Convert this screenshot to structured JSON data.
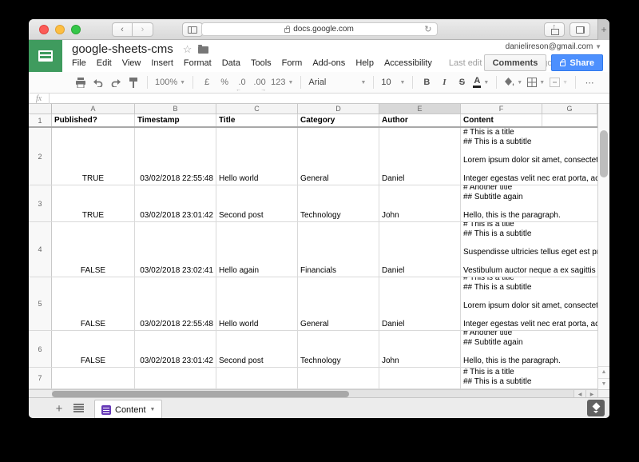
{
  "browser": {
    "url": "docs.google.com",
    "back_label": "‹",
    "forward_label": "›",
    "reload_label": "↻",
    "new_tab_label": "+"
  },
  "doc": {
    "title": "google-sheets-cms",
    "star": "☆",
    "menus": [
      "File",
      "Edit",
      "View",
      "Insert",
      "Format",
      "Data",
      "Tools",
      "Form",
      "Add-ons",
      "Help",
      "Accessibility"
    ],
    "last_edit": "Last edit was seconds ago",
    "account": "danielireson@gmail.com",
    "comments_label": "Comments",
    "share_label": "Share"
  },
  "toolbar": {
    "zoom": "100%",
    "currency": "£",
    "percent": "%",
    "decimal_decrease": ".0",
    "decimal_increase": ".00",
    "more_formats": "123",
    "font": "Arial",
    "font_size": "10",
    "bold": "B",
    "italic": "I",
    "strikethrough": "S",
    "text_color": "A",
    "more": "⋯",
    "icons": [
      "print-icon",
      "undo-icon",
      "redo-icon",
      "paint-format-icon",
      "fill-color-icon",
      "borders-icon",
      "merge-cells-icon"
    ]
  },
  "formula_bar": {
    "fx": "fx"
  },
  "grid": {
    "col_headers": [
      "A",
      "B",
      "C",
      "D",
      "E",
      "F",
      "G"
    ],
    "highlighted_column": "E",
    "header_row": {
      "num": "1",
      "cells": [
        "Published?",
        "Timestamp",
        "Title",
        "Category",
        "Author",
        "Content"
      ]
    },
    "rows": [
      {
        "num": "2",
        "published": "TRUE",
        "timestamp": "03/02/2018 22:55:48",
        "title": "Hello world",
        "category": "General",
        "author": "Daniel",
        "content": "# This is a title\n## This is a subtitle\n\nLorem ipsum dolor sit amet, consectetur adip\n\nInteger egestas velit nec erat porta, ac lacinia"
      },
      {
        "num": "3",
        "published": "TRUE",
        "timestamp": "03/02/2018 23:01:42",
        "title": "Second post",
        "category": "Technology",
        "author": "John",
        "content": "# Another title\n## Subtitle again\n\nHello, this is the paragraph."
      },
      {
        "num": "4",
        "published": "FALSE",
        "timestamp": "03/02/2018 23:02:41",
        "title": "Hello again",
        "category": "Financials",
        "author": "Daniel",
        "content": "# This is a title\n## This is a subtitle\n\nSuspendisse ultricies tellus eget est pretium,\n\nVestibulum auctor neque a ex sagittis sollicitu"
      },
      {
        "num": "5",
        "published": "FALSE",
        "timestamp": "03/02/2018 22:55:48",
        "title": "Hello world",
        "category": "General",
        "author": "Daniel",
        "content": "# This is a title\n## This is a subtitle\n\nLorem ipsum dolor sit amet, consectetur adip\n\nInteger egestas velit nec erat porta, ac lacinia"
      },
      {
        "num": "6",
        "published": "FALSE",
        "timestamp": "03/02/2018 23:01:42",
        "title": "Second post",
        "category": "Technology",
        "author": "John",
        "content": "# Another title\n## Subtitle again\n\nHello, this is the paragraph."
      },
      {
        "num": "7",
        "published": "",
        "timestamp": "",
        "title": "",
        "category": "",
        "author": "",
        "content": "# This is a title\n## This is a subtitle"
      }
    ]
  },
  "footer": {
    "add_sheet_label": "+",
    "tab_label": "Content"
  },
  "colors": {
    "sheets_green": "#3f9b5e",
    "share_blue": "#4d90fe",
    "form_purple": "#673ab7"
  }
}
